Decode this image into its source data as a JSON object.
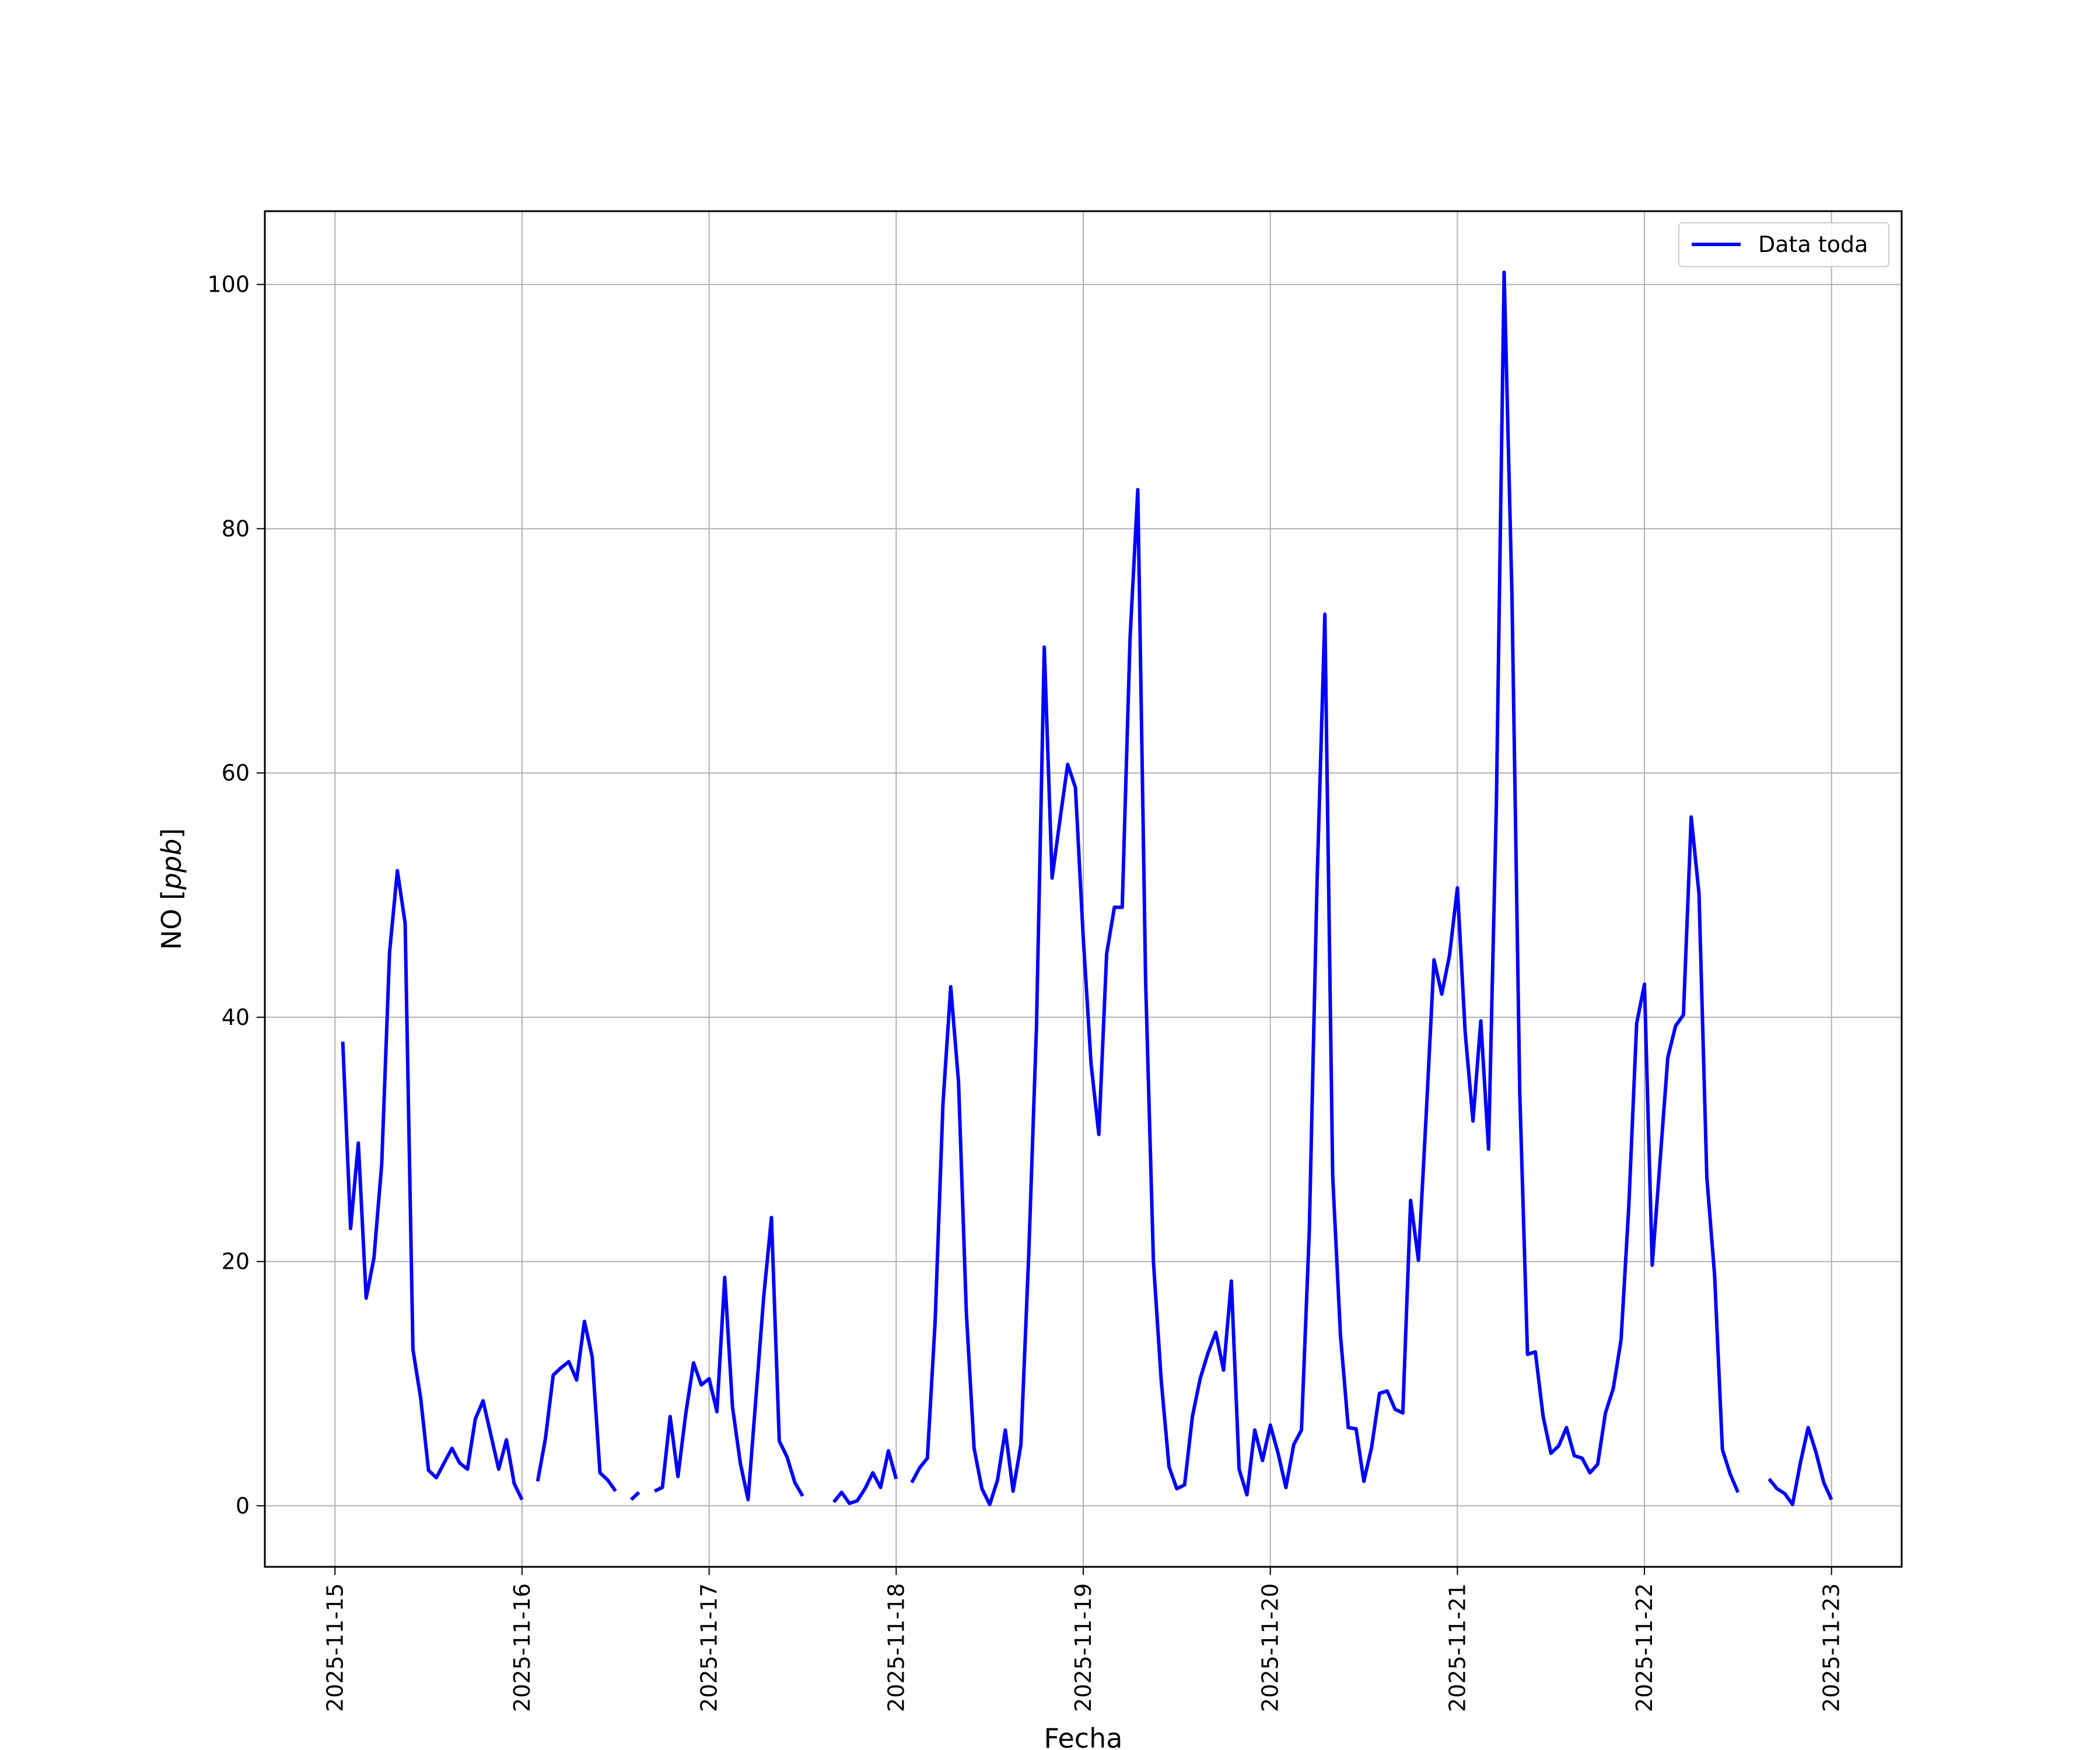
{
  "chart_data": {
    "type": "line",
    "title": "",
    "xlabel": "Fecha",
    "ylabel": "NO [ppb]",
    "ylabel_parts": {
      "base": "NO [",
      "italic": "ppb",
      "end": "]"
    },
    "x_start": "2025-11-15T01:00",
    "x_step": "1 hour",
    "xlim": [
      "2025-11-14T15:00",
      "2025-11-23T09:00"
    ],
    "ylim": [
      -5,
      106
    ],
    "xticks": [
      "2025-11-15",
      "2025-11-16",
      "2025-11-17",
      "2025-11-18",
      "2025-11-19",
      "2025-11-20",
      "2025-11-21",
      "2025-11-22",
      "2025-11-23"
    ],
    "yticks": [
      0,
      20,
      40,
      60,
      80,
      100
    ],
    "grid": true,
    "legend": {
      "position": "top-right",
      "entries": [
        "Data toda"
      ]
    },
    "series": [
      {
        "name": "Data toda",
        "color": "#0000ff",
        "values": [
          38,
          22.7,
          29.7,
          17,
          20.3,
          28,
          45.3,
          52,
          47.7,
          12.8,
          8.8,
          2.9,
          2.3,
          3.5,
          4.7,
          3.5,
          3,
          7.1,
          8.6,
          5.8,
          3,
          5.4,
          1.8,
          0.5,
          null,
          2,
          5.5,
          10.7,
          11.3,
          11.8,
          10.3,
          15.1,
          12.2,
          2.7,
          2.1,
          1.2,
          null,
          0.5,
          1.1,
          null,
          1.2,
          1.5,
          7.3,
          2.4,
          7.5,
          11.7,
          9.9,
          10.4,
          7.7,
          18.7,
          8.1,
          3.5,
          0.5,
          8.8,
          17.1,
          23.6,
          5.3,
          4,
          1.9,
          0.8,
          null,
          null,
          null,
          0.3,
          1.1,
          0.2,
          0.4,
          1.4,
          2.7,
          1.5,
          4.5,
          2.2,
          null,
          1.9,
          3.1,
          3.9,
          15.1,
          32.9,
          42.5,
          34.7,
          15.8,
          4.7,
          1.4,
          0.1,
          2.1,
          6.2,
          1.2,
          5,
          20.5,
          39.2,
          70.3,
          51.4,
          56.1,
          60.7,
          58.8,
          46.5,
          36.2,
          30.4,
          45.2,
          49,
          49,
          71,
          83.2,
          43,
          20,
          10.3,
          3.2,
          1.4,
          1.7,
          7.3,
          10.4,
          12.5,
          14.2,
          11.1,
          18.4,
          3,
          0.9,
          6.2,
          3.7,
          6.6,
          4.3,
          1.5,
          5,
          6.2,
          22.5,
          51.2,
          73,
          27,
          14,
          6.4,
          6.3,
          2,
          4.8,
          9.2,
          9.4,
          7.9,
          7.6,
          25,
          20.1,
          32,
          44.7,
          41.9,
          45.1,
          50.6,
          38.8,
          31.5,
          39.7,
          29.2,
          57.4,
          101,
          74.6,
          33.8,
          12.4,
          12.6,
          7.3,
          4.3,
          4.9,
          6.4,
          4.1,
          3.9,
          2.7,
          3.4,
          7.6,
          9.6,
          13.6,
          24.6,
          39.5,
          42.7,
          19.7,
          28.2,
          36.7,
          39.3,
          40.2,
          56.4,
          50.1,
          26.9,
          18.9,
          4.6,
          2.6,
          1.1,
          null,
          null,
          null,
          2.2,
          1.4,
          1,
          0.1,
          3.5,
          6.4,
          4.4,
          1.9,
          0.5
        ]
      }
    ]
  }
}
